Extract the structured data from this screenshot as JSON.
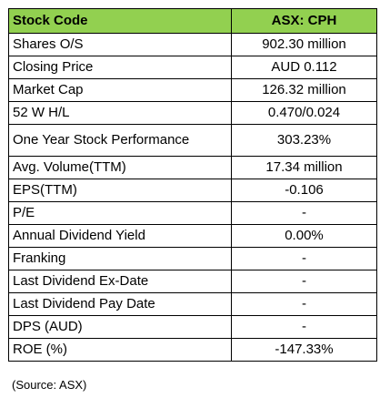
{
  "table": {
    "header": {
      "label": "Stock Code",
      "value": "ASX: CPH"
    },
    "rows": [
      {
        "label": "Shares O/S",
        "value": "902.30 million"
      },
      {
        "label": "Closing Price",
        "value": "AUD 0.112"
      },
      {
        "label": "Market Cap",
        "value": "126.32 million"
      },
      {
        "label": "52 W H/L",
        "value": "0.470/0.024"
      },
      {
        "label": "One Year Stock Performance",
        "value": "303.23%"
      },
      {
        "label": "Avg. Volume(TTM)",
        "value": "17.34 million"
      },
      {
        "label": "EPS(TTM)",
        "value": "-0.106"
      },
      {
        "label": "P/E",
        "value": "-"
      },
      {
        "label": "Annual Dividend Yield",
        "value": "0.00%"
      },
      {
        "label": "Franking",
        "value": "-"
      },
      {
        "label": "Last Dividend Ex-Date",
        "value": "-"
      },
      {
        "label": "Last Dividend Pay Date",
        "value": "-"
      },
      {
        "label": "DPS (AUD)",
        "value": "-"
      },
      {
        "label": "ROE (%)",
        "value": "-147.33%"
      }
    ]
  },
  "source_note": "(Source: ASX)",
  "colors": {
    "header_background": "#92d050"
  }
}
